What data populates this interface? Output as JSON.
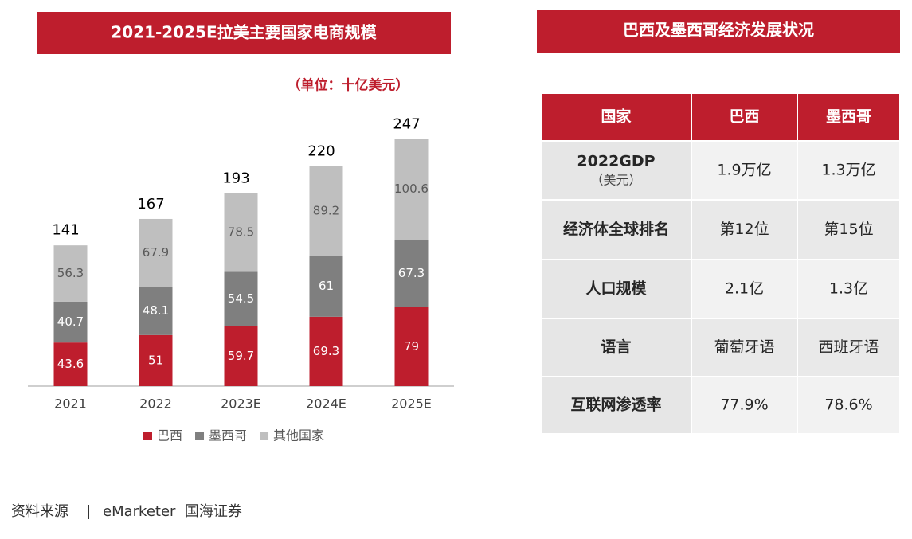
{
  "chart_data": {
    "type": "stacked_bar",
    "title": "2021-2025E拉美主要国家电商规模",
    "subtitle": "（单位：十亿美元）",
    "categories": [
      "2021",
      "2022",
      "2023E",
      "2024E",
      "2025E"
    ],
    "series": [
      {
        "name": "巴西",
        "color": "#be1e2d",
        "values": [
          43.6,
          51,
          59.7,
          69.3,
          79
        ]
      },
      {
        "name": "墨西哥",
        "color": "#7f7f7f",
        "values": [
          40.7,
          48.1,
          54.5,
          61,
          67.3
        ]
      },
      {
        "name": "其他国家",
        "color": "#bfbfbf",
        "values": [
          56.3,
          67.9,
          78.5,
          89.2,
          100.6
        ]
      }
    ],
    "totals": [
      141,
      167,
      193,
      220,
      247
    ],
    "ylim": [
      0,
      260
    ]
  },
  "table": {
    "title": "巴西及墨西哥经济发展状况",
    "header": [
      "国家",
      "巴西",
      "墨西哥"
    ],
    "rows": [
      {
        "label": "2022GDP",
        "sublabel": "（美元）",
        "cells": [
          "1.9万亿",
          "1.3万亿"
        ]
      },
      {
        "label": "经济体全球排名",
        "cells": [
          "第12位",
          "第15位"
        ]
      },
      {
        "label": "人口规模",
        "cells": [
          "2.1亿",
          "1.3亿"
        ]
      },
      {
        "label": "语言",
        "cells": [
          "葡萄牙语",
          "西班牙语"
        ]
      },
      {
        "label": "互联网渗透率",
        "cells": [
          "77.9%",
          "78.6%"
        ]
      }
    ]
  },
  "source": {
    "label": "资料来源",
    "text": "eMarketer  国海证券"
  }
}
